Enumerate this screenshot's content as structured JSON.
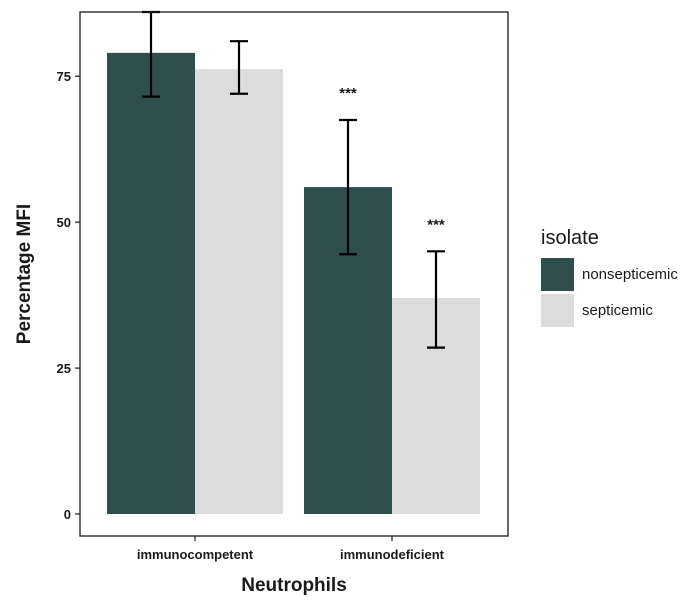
{
  "chart_data": {
    "type": "bar",
    "xlabel": "Neutrophils",
    "ylabel": "Percentage MFI",
    "categories": [
      "immunocompetent",
      "immunodeficient"
    ],
    "ylim": [
      0,
      86
    ],
    "yticks": [
      0,
      25,
      50,
      75
    ],
    "legend": {
      "title": "isolate",
      "position": "right"
    },
    "series": [
      {
        "name": "nonsepticemic",
        "color": "#2f4f4f",
        "values": [
          79,
          56
        ],
        "error_low": [
          71.5,
          44.5
        ],
        "error_high": [
          86,
          67.5
        ],
        "annotations": [
          "",
          "***"
        ]
      },
      {
        "name": "septicemic",
        "color": "#dcdcdc",
        "values": [
          76.2,
          37
        ],
        "error_low": [
          72,
          28.5
        ],
        "error_high": [
          81,
          45
        ],
        "annotations": [
          "",
          "***"
        ]
      }
    ],
    "grid": false
  }
}
